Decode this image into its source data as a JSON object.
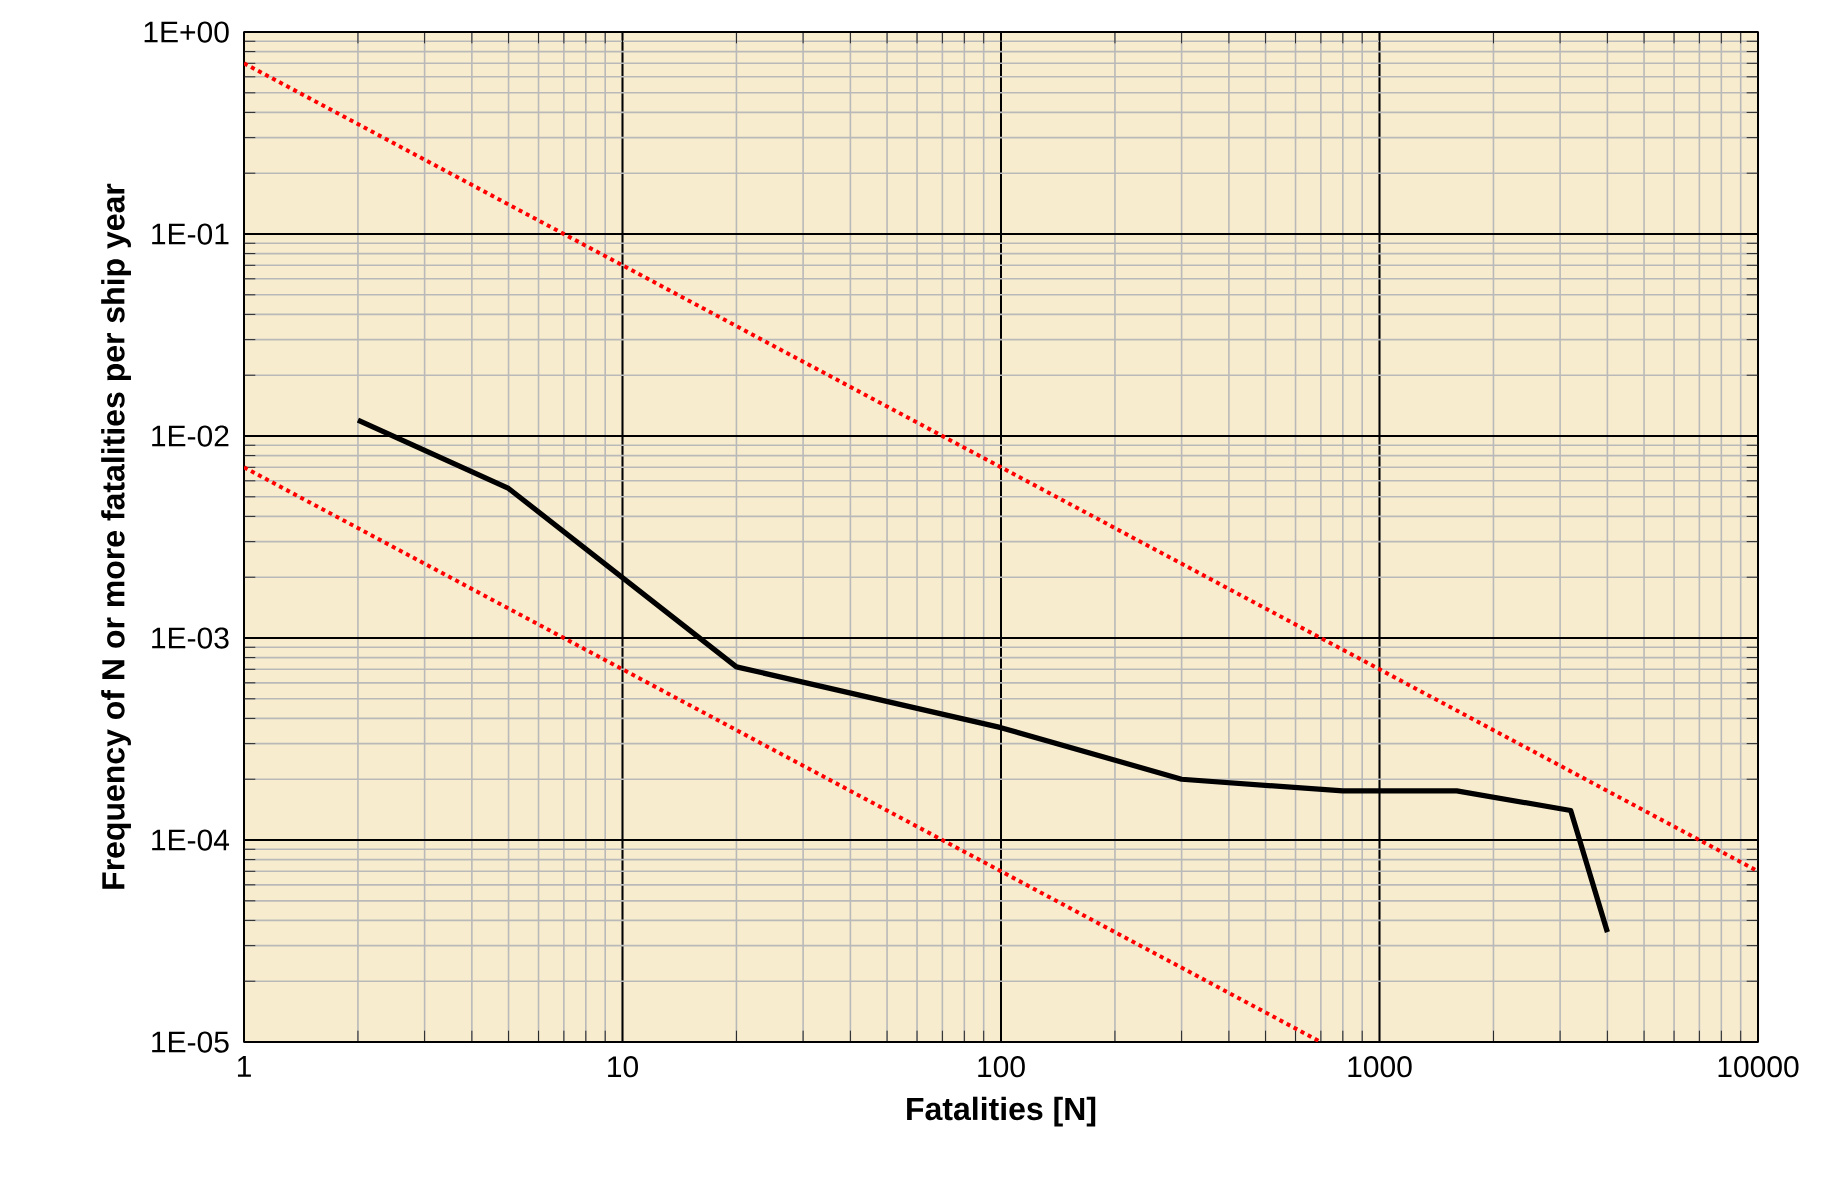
{
  "chart_data": {
    "type": "line",
    "xlabel": "Fatalities [N]",
    "ylabel": "Frequency of N or more fatalities per ship year",
    "log": "xy",
    "grid": true,
    "marker": "none",
    "xlim": [
      1,
      10000
    ],
    "xticks": [
      1,
      10,
      100,
      1000,
      10000
    ],
    "ylim": [
      1e-05,
      1
    ],
    "yticks": [
      {
        "value": 1e-05,
        "label": "1E-05"
      },
      {
        "value": 0.0001,
        "label": "1E-04"
      },
      {
        "value": 0.001,
        "label": "1E-03"
      },
      {
        "value": 0.01,
        "label": "1E-02"
      },
      {
        "value": 0.1,
        "label": "1E-01"
      },
      {
        "value": 1,
        "label": "1E+00"
      }
    ],
    "series": [
      {
        "color": "#000000",
        "line_style": "solid",
        "x": [
          2,
          5,
          20,
          100,
          300,
          800,
          1600,
          3200,
          4000
        ],
        "values": [
          0.012,
          0.0055,
          0.00072,
          0.00036,
          0.0002,
          0.000175,
          0.000175,
          0.00014,
          3.5e-05
        ]
      },
      {
        "color": "#ff0000",
        "line_style": "dotted",
        "x": [
          1,
          10000
        ],
        "values": [
          0.7,
          7e-05
        ]
      },
      {
        "color": "#ff0000",
        "line_style": "dotted",
        "x": [
          1,
          700
        ],
        "values": [
          0.007,
          1e-05
        ]
      }
    ]
  }
}
